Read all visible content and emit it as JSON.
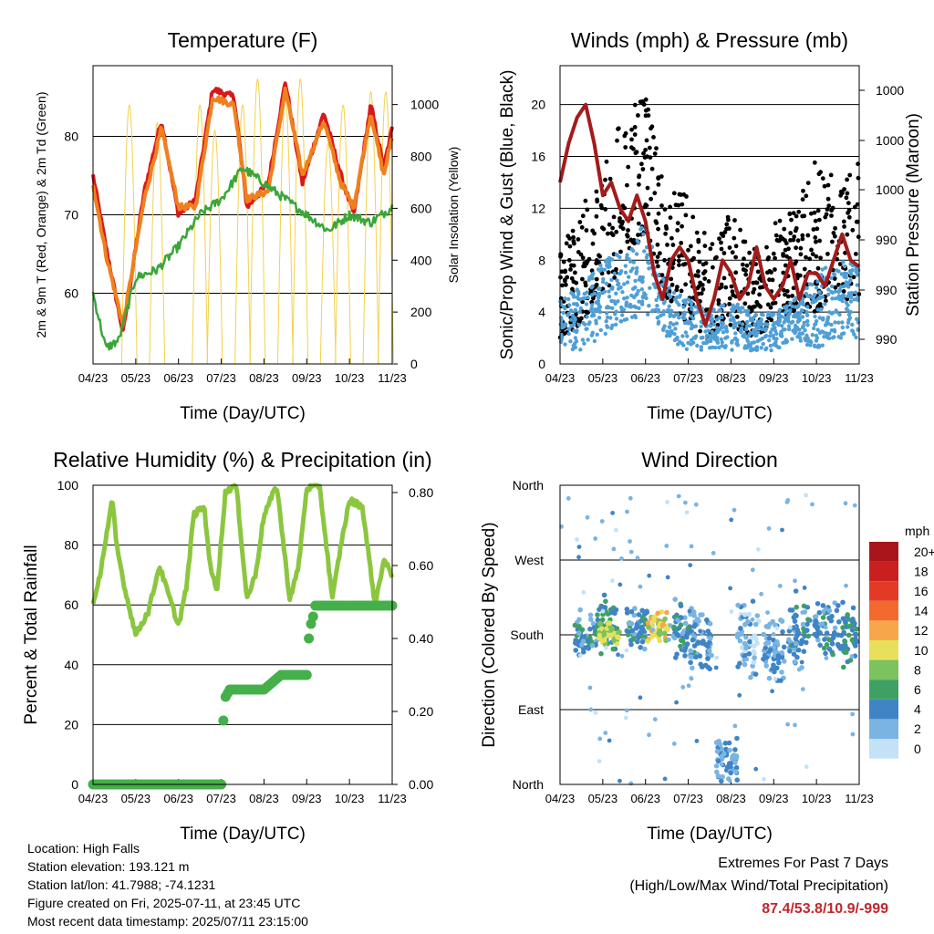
{
  "chart_data": [
    {
      "type": "line",
      "title": "Temperature (F)",
      "xlabel": "Time (Day/UTC)",
      "ylabel": "2m & 9m T (Red, Orange) & 2m Td (Green)",
      "ylabel_right": "Solar Insolation (Yellow)",
      "x_ticks": [
        "04/23",
        "05/23",
        "06/23",
        "07/23",
        "08/23",
        "09/23",
        "10/23",
        "11/23"
      ],
      "ylim": [
        51,
        89
      ],
      "y_ticks": [
        "60",
        "70",
        "80"
      ],
      "ylim_right": [
        0,
        1150
      ],
      "y_ticks_right": [
        "0",
        "200",
        "400",
        "600",
        "800",
        "1000"
      ],
      "grid": "horizontal",
      "series": [
        {
          "color": "#d7191c",
          "x": [
            0,
            0.3,
            0.7,
            1.2,
            1.6,
            2.0,
            2.4,
            2.8,
            3.3,
            3.6,
            4.1,
            4.5,
            4.9,
            5.4,
            5.8,
            6.1,
            6.5,
            6.8,
            7.0
          ],
          "values": [
            75,
            66,
            55,
            73,
            82,
            70,
            72,
            86,
            85,
            71,
            74,
            87,
            74,
            83,
            75,
            70,
            84,
            76,
            81
          ]
        },
        {
          "color": "#f0801e",
          "x": [
            0,
            0.3,
            0.7,
            1.2,
            1.6,
            2.0,
            2.4,
            2.8,
            3.3,
            3.6,
            4.1,
            4.5,
            4.9,
            5.4,
            5.8,
            6.1,
            6.5,
            6.8,
            7.0
          ],
          "values": [
            74,
            65,
            56,
            72,
            81,
            71,
            71,
            85,
            84,
            72,
            73,
            86,
            75,
            82,
            74,
            71,
            83,
            75,
            80
          ]
        },
        {
          "color": "#3aa63a",
          "x": [
            0,
            0.3,
            0.6,
            1.0,
            1.5,
            2.0,
            2.5,
            3.0,
            3.5,
            4.0,
            4.5,
            5.0,
            5.5,
            6.0,
            6.5,
            7.0
          ],
          "values": [
            60,
            53,
            54,
            62,
            63,
            66,
            70,
            72,
            76,
            74,
            72,
            70,
            68,
            70,
            69,
            71
          ]
        }
      ],
      "insolation_peaks": [
        {
          "x": 0.85,
          "peak": 1000
        },
        {
          "x": 1.5,
          "peak": 930
        },
        {
          "x": 2.5,
          "peak": 1000
        },
        {
          "x": 2.85,
          "peak": 900
        },
        {
          "x": 3.5,
          "peak": 1000
        },
        {
          "x": 3.85,
          "peak": 1100
        },
        {
          "x": 4.5,
          "peak": 1030
        },
        {
          "x": 4.85,
          "peak": 1100
        },
        {
          "x": 5.5,
          "peak": 850
        },
        {
          "x": 5.85,
          "peak": 1000
        },
        {
          "x": 6.5,
          "peak": 1050
        },
        {
          "x": 6.85,
          "peak": 1050
        }
      ]
    },
    {
      "type": "scatter",
      "title": "Winds (mph) & Pressure (mb)",
      "xlabel": "Time (Day/UTC)",
      "ylabel": "Sonic/Prop Wind & Gust (Blue, Black)",
      "ylabel_right": "Station Pressure (Maroon)",
      "x_ticks": [
        "04/23",
        "05/23",
        "06/23",
        "07/23",
        "08/23",
        "09/23",
        "10/23",
        "11/23"
      ],
      "ylim": [
        0,
        23
      ],
      "y_ticks": [
        "0",
        "4",
        "8",
        "12",
        "16",
        "20"
      ],
      "y_ticks_right": [
        "990",
        "990",
        "990",
        "1000",
        "1000",
        "1000"
      ],
      "grid": "horizontal",
      "wind_band": {
        "color": "#4f9fd6",
        "x": [
          0,
          0.5,
          1.0,
          1.5,
          2.0,
          2.5,
          3.0,
          3.5,
          4.0,
          4.5,
          5.0,
          5.5,
          6.0,
          6.5,
          7.0
        ],
        "low": [
          1,
          1,
          2,
          3,
          4,
          2,
          1,
          1,
          1,
          1,
          1,
          2,
          1,
          2,
          2
        ],
        "high": [
          5,
          6,
          8,
          9,
          11,
          6,
          5,
          4,
          5,
          4,
          4,
          5,
          7,
          8,
          8
        ]
      },
      "gust_band": {
        "color": "#000000",
        "x": [
          0,
          0.5,
          1.0,
          1.5,
          2.0,
          2.5,
          3.0,
          3.5,
          4.0,
          4.5,
          5.0,
          5.5,
          6.0,
          6.5,
          7.0
        ],
        "low": [
          2,
          3,
          5,
          8,
          10,
          5,
          3,
          2,
          3,
          2,
          3,
          4,
          4,
          5,
          5
        ],
        "high": [
          9,
          12,
          16,
          19,
          21,
          13,
          14,
          9,
          12,
          9,
          11,
          12,
          16,
          14,
          16
        ]
      },
      "pressure": {
        "color": "#a31b1b",
        "x": [
          0,
          0.2,
          0.4,
          0.6,
          0.8,
          1.0,
          1.2,
          1.4,
          1.6,
          1.8,
          2.0,
          2.2,
          2.4,
          2.6,
          2.8,
          3.0,
          3.2,
          3.4,
          3.6,
          3.8,
          4.0,
          4.2,
          4.4,
          4.6,
          4.8,
          5.0,
          5.2,
          5.4,
          5.6,
          5.8,
          6.0,
          6.2,
          6.4,
          6.6,
          6.8,
          7.0
        ],
        "values": [
          14,
          17,
          19,
          20,
          17,
          13,
          14,
          12,
          11,
          13,
          11,
          7,
          5,
          8,
          9,
          8,
          5,
          3,
          5,
          8,
          7,
          5,
          6,
          9,
          6,
          5,
          6,
          8,
          5,
          7,
          7,
          6,
          8,
          10,
          8,
          7.5
        ]
      }
    },
    {
      "type": "line",
      "title": "Relative Humidity (%) & Precipitation (in)",
      "xlabel": "Time (Day/UTC)",
      "ylabel": "Percent & Total Rainfall",
      "x_ticks": [
        "04/23",
        "05/23",
        "06/23",
        "07/23",
        "08/23",
        "09/23",
        "10/23",
        "11/23"
      ],
      "ylim": [
        0,
        100
      ],
      "y_ticks": [
        "0",
        "20",
        "40",
        "60",
        "80",
        "100"
      ],
      "ylim_right": [
        0,
        0.82
      ],
      "y_ticks_right": [
        "0.00",
        "0.20",
        "0.40",
        "0.60",
        "0.80"
      ],
      "grid": "horizontal",
      "series": [
        {
          "color": "#8cc63f",
          "x": [
            0,
            0.1,
            0.45,
            0.55,
            0.75,
            1.0,
            1.3,
            1.55,
            1.8,
            2.0,
            2.2,
            2.35,
            2.6,
            2.75,
            2.9,
            3.1,
            3.35,
            3.6,
            3.8,
            4.0,
            4.3,
            4.6,
            4.8,
            5.0,
            5.3,
            5.6,
            5.8,
            6.0,
            6.3,
            6.6,
            6.8,
            7.0
          ],
          "values": [
            60,
            65,
            95,
            80,
            65,
            50,
            58,
            73,
            62,
            53,
            67,
            90,
            93,
            72,
            65,
            98,
            100,
            62,
            70,
            90,
            100,
            62,
            72,
            99,
            100,
            62,
            80,
            95,
            93,
            60,
            75,
            70
          ]
        },
        {
          "color": "#45b04a",
          "x": [
            0,
            3.0,
            3.02,
            3.06,
            3.1,
            3.2,
            3.5,
            4.0,
            4.2,
            4.4,
            4.7,
            5.0,
            5.05,
            5.1,
            5.15,
            5.2,
            5.5,
            6.0,
            7.0
          ],
          "values": [
            0,
            0,
            0.1,
            0.2,
            0.24,
            0.26,
            0.26,
            0.26,
            0.28,
            0.3,
            0.3,
            0.3,
            0.4,
            0.44,
            0.46,
            0.49,
            0.49,
            0.49,
            0.49
          ]
        }
      ]
    },
    {
      "type": "scatter",
      "title": "Wind Direction",
      "xlabel": "Time (Day/UTC)",
      "ylabel": "Direction (Colored By Speed)",
      "x_ticks": [
        "04/23",
        "05/23",
        "06/23",
        "07/23",
        "08/23",
        "09/23",
        "10/23",
        "11/23"
      ],
      "y_ticks": [
        "North",
        "East",
        "South",
        "West",
        "North"
      ],
      "ylim": [
        0,
        360
      ],
      "grid": "horizontal",
      "legend": {
        "title": "mph",
        "position": "right",
        "labels": [
          "20+",
          "18",
          "16",
          "14",
          "12",
          "10",
          "8",
          "6",
          "4",
          "2",
          "0"
        ],
        "colors": [
          "#a8161c",
          "#c8201e",
          "#e33a26",
          "#f26a2e",
          "#f8a64a",
          "#e8e05a",
          "#7cc25e",
          "#3fa063",
          "#3f84c4",
          "#7ab4e2",
          "#c3e2f7"
        ]
      },
      "clusters": [
        {
          "x": 0.6,
          "dir": 180,
          "spread": 25,
          "speed": 4
        },
        {
          "x": 1.1,
          "dir": 190,
          "spread": 30,
          "speed": 5
        },
        {
          "x": 1.15,
          "dir": 180,
          "spread": 12,
          "speed": 9
        },
        {
          "x": 1.8,
          "dir": 190,
          "spread": 25,
          "speed": 4
        },
        {
          "x": 2.3,
          "dir": 190,
          "spread": 15,
          "speed": 10
        },
        {
          "x": 2.9,
          "dir": 185,
          "spread": 30,
          "speed": 4
        },
        {
          "x": 3.3,
          "dir": 170,
          "spread": 30,
          "speed": 3
        },
        {
          "x": 3.9,
          "dir": 30,
          "spread": 20,
          "speed": 3
        },
        {
          "x": 4.4,
          "dir": 170,
          "spread": 40,
          "speed": 2
        },
        {
          "x": 5.0,
          "dir": 160,
          "spread": 35,
          "speed": 3
        },
        {
          "x": 5.6,
          "dir": 185,
          "spread": 35,
          "speed": 4
        },
        {
          "x": 6.2,
          "dir": 190,
          "spread": 25,
          "speed": 4
        },
        {
          "x": 6.7,
          "dir": 180,
          "spread": 30,
          "speed": 5
        }
      ]
    }
  ],
  "station": {
    "location": "Location: High Falls",
    "elevation": "Station elevation: 193.121 m",
    "latlon": "Station lat/lon: 41.7988; -74.1231",
    "created": "Figure created on Fri, 2025-07-11, at 23:45 UTC",
    "latest": "Most recent data timestamp: 2025/07/11 23:15:00"
  },
  "extremes": {
    "heading": "Extremes For Past 7 Days",
    "subheading": "(High/Low/Max Wind/Total Precipitation)",
    "values": "87.4/53.8/10.9/-999",
    "value_color": "#c0272d"
  }
}
